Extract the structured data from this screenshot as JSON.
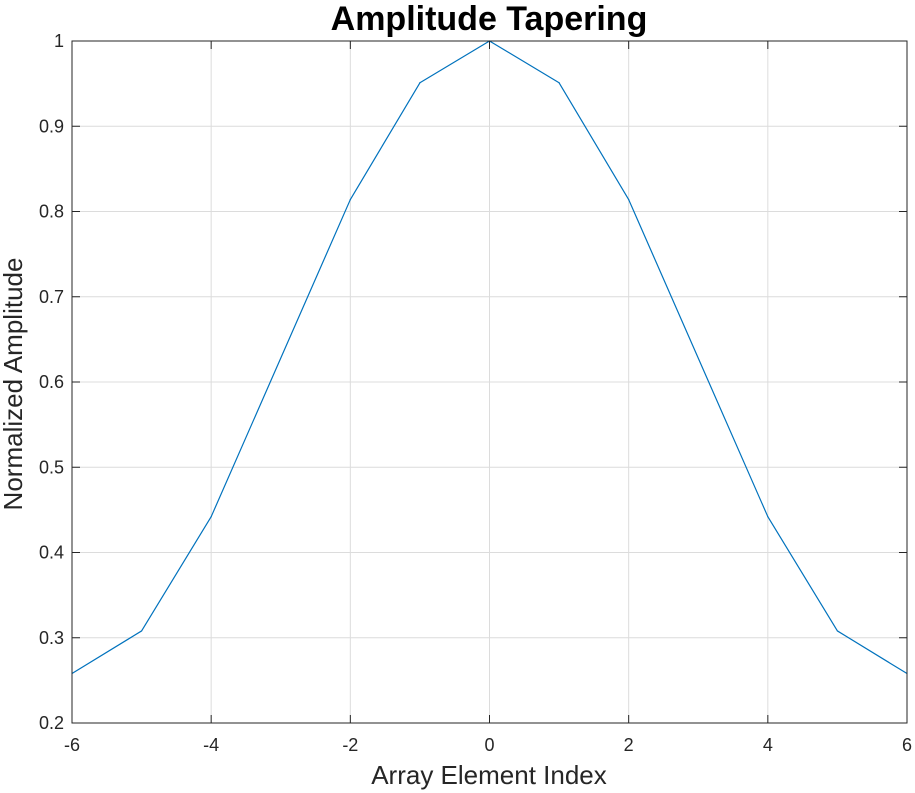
{
  "chart_data": {
    "type": "line",
    "title": "Amplitude Tapering",
    "xlabel": "Array Element Index",
    "ylabel": "Normalized Amplitude",
    "xlim": [
      -6,
      6
    ],
    "ylim": [
      0.2,
      1
    ],
    "xticks": [
      -6,
      -4,
      -2,
      0,
      2,
      4,
      6
    ],
    "yticks": [
      0.2,
      0.3,
      0.4,
      0.5,
      0.6,
      0.7,
      0.8,
      0.9,
      1
    ],
    "grid": true,
    "series": [
      {
        "x": [
          -6,
          -5,
          -4,
          -2,
          -1,
          0,
          1,
          2,
          4,
          5,
          6
        ],
        "y": [
          0.258,
          0.308,
          0.442,
          0.814,
          0.951,
          1.0,
          0.951,
          0.814,
          0.442,
          0.308,
          0.258
        ],
        "color": "#0072BD"
      }
    ]
  }
}
